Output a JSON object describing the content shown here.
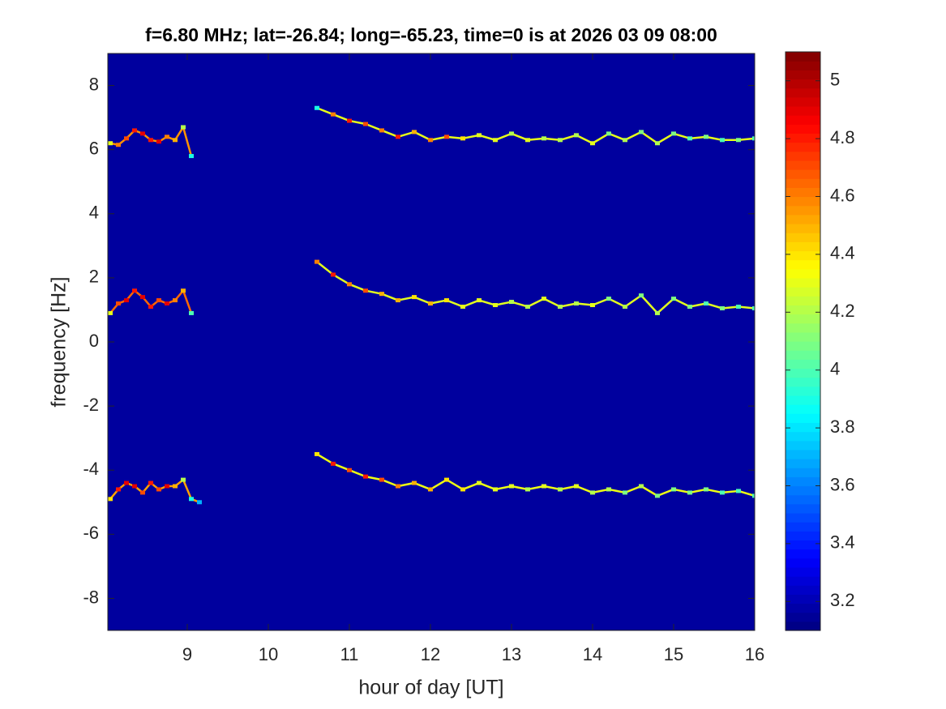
{
  "chart_data": {
    "type": "spectrogram",
    "title": "f=6.80 MHz;  lat=-26.84; long=-65.23, time=0 is at 2026 03 09 08:00",
    "xlabel": "hour of day [UT]",
    "ylabel": "frequency [Hz]",
    "xlim": [
      8.02,
      16
    ],
    "ylim": [
      -9,
      9
    ],
    "xticks": [
      9,
      10,
      11,
      12,
      13,
      14,
      15,
      16
    ],
    "yticks": [
      -8,
      -6,
      -4,
      -2,
      0,
      2,
      4,
      6,
      8
    ],
    "colormap": "jet",
    "clim": [
      3.1,
      5.1
    ],
    "cticks": [
      3.2,
      3.4,
      3.6,
      3.8,
      4,
      4.2,
      4.4,
      4.6,
      4.8,
      5
    ],
    "series": [
      {
        "x": [
          8.05,
          8.15,
          8.25,
          8.35,
          8.45,
          8.55,
          8.65,
          8.75,
          8.85,
          8.95,
          9.05
        ],
        "values": [
          6.2,
          6.15,
          6.35,
          6.6,
          6.5,
          6.3,
          6.25,
          6.4,
          6.3,
          6.7,
          5.8
        ],
        "z": [
          4.3,
          4.6,
          4.7,
          4.8,
          4.9,
          4.8,
          4.9,
          4.6,
          4.5,
          4.2,
          3.9
        ]
      },
      {
        "x": [
          8.05,
          8.15,
          8.25,
          8.35,
          8.45,
          8.55,
          8.65,
          8.75,
          8.85,
          8.95,
          9.05
        ],
        "values": [
          0.9,
          1.2,
          1.3,
          1.6,
          1.4,
          1.1,
          1.3,
          1.2,
          1.3,
          1.6,
          0.9
        ],
        "z": [
          4.3,
          4.7,
          4.9,
          4.8,
          4.9,
          4.8,
          4.7,
          4.9,
          4.6,
          4.5,
          4.0
        ]
      },
      {
        "x": [
          8.05,
          8.15,
          8.25,
          8.35,
          8.45,
          8.55,
          8.65,
          8.75,
          8.85,
          8.95,
          9.05,
          9.15
        ],
        "values": [
          -4.9,
          -4.6,
          -4.4,
          -4.5,
          -4.7,
          -4.4,
          -4.6,
          -4.5,
          -4.5,
          -4.3,
          -4.9,
          -5.0
        ],
        "z": [
          4.4,
          4.8,
          4.9,
          4.9,
          4.7,
          4.8,
          4.7,
          4.9,
          4.5,
          4.2,
          3.9,
          3.7
        ]
      },
      {
        "x": [
          10.6,
          10.8,
          11.0,
          11.2,
          11.4,
          11.6,
          11.8,
          12.0,
          12.2,
          12.4,
          12.6,
          12.8,
          13.0,
          13.2,
          13.4,
          13.6,
          13.8,
          14.0,
          14.2,
          14.4,
          14.6,
          14.8,
          15.0,
          15.2,
          15.4,
          15.6,
          15.8,
          16.0
        ],
        "values": [
          7.3,
          7.1,
          6.9,
          6.8,
          6.6,
          6.4,
          6.55,
          6.3,
          6.4,
          6.35,
          6.45,
          6.3,
          6.5,
          6.3,
          6.35,
          6.3,
          6.45,
          6.2,
          6.5,
          6.3,
          6.55,
          6.2,
          6.5,
          6.35,
          6.4,
          6.3,
          6.3,
          6.35
        ],
        "z": [
          3.9,
          4.6,
          4.8,
          4.7,
          4.6,
          4.8,
          4.5,
          4.6,
          4.7,
          4.4,
          4.3,
          4.3,
          4.2,
          4.3,
          4.2,
          4.2,
          4.2,
          4.3,
          4.1,
          4.2,
          4.1,
          4.2,
          4.1,
          4.0,
          4.1,
          4.0,
          4.1,
          4.0
        ]
      },
      {
        "x": [
          10.6,
          10.8,
          11.0,
          11.2,
          11.4,
          11.6,
          11.8,
          12.0,
          12.2,
          12.4,
          12.6,
          12.8,
          13.0,
          13.2,
          13.4,
          13.6,
          13.8,
          14.0,
          14.2,
          14.4,
          14.6,
          14.8,
          15.0,
          15.2,
          15.4,
          15.6,
          15.8,
          16.0
        ],
        "values": [
          2.5,
          2.1,
          1.8,
          1.6,
          1.5,
          1.3,
          1.4,
          1.2,
          1.3,
          1.1,
          1.3,
          1.15,
          1.25,
          1.1,
          1.35,
          1.1,
          1.2,
          1.15,
          1.35,
          1.1,
          1.45,
          0.9,
          1.35,
          1.1,
          1.2,
          1.05,
          1.1,
          1.05
        ],
        "z": [
          4.6,
          4.8,
          4.6,
          4.7,
          4.5,
          4.5,
          4.4,
          4.5,
          4.4,
          4.3,
          4.3,
          4.3,
          4.2,
          4.2,
          4.3,
          4.2,
          4.2,
          4.3,
          4.1,
          4.2,
          4.1,
          4.2,
          4.1,
          4.1,
          4.0,
          4.1,
          4.0,
          4.0
        ]
      },
      {
        "x": [
          10.6,
          10.8,
          11.0,
          11.2,
          11.4,
          11.6,
          11.8,
          12.0,
          12.2,
          12.4,
          12.6,
          12.8,
          13.0,
          13.2,
          13.4,
          13.6,
          13.8,
          14.0,
          14.2,
          14.4,
          14.6,
          14.8,
          15.0,
          15.2,
          15.4,
          15.6,
          15.8,
          16.0
        ],
        "values": [
          -3.5,
          -3.8,
          -4.0,
          -4.2,
          -4.3,
          -4.5,
          -4.4,
          -4.6,
          -4.3,
          -4.6,
          -4.4,
          -4.6,
          -4.5,
          -4.6,
          -4.5,
          -4.6,
          -4.5,
          -4.7,
          -4.6,
          -4.7,
          -4.5,
          -4.8,
          -4.6,
          -4.7,
          -4.6,
          -4.7,
          -4.65,
          -4.8
        ],
        "z": [
          4.4,
          4.8,
          4.7,
          4.8,
          4.7,
          4.6,
          4.5,
          4.5,
          4.4,
          4.4,
          4.3,
          4.3,
          4.3,
          4.2,
          4.3,
          4.2,
          4.3,
          4.2,
          4.2,
          4.1,
          4.2,
          4.1,
          4.1,
          4.1,
          4.1,
          4.0,
          4.0,
          4.0
        ]
      }
    ]
  }
}
